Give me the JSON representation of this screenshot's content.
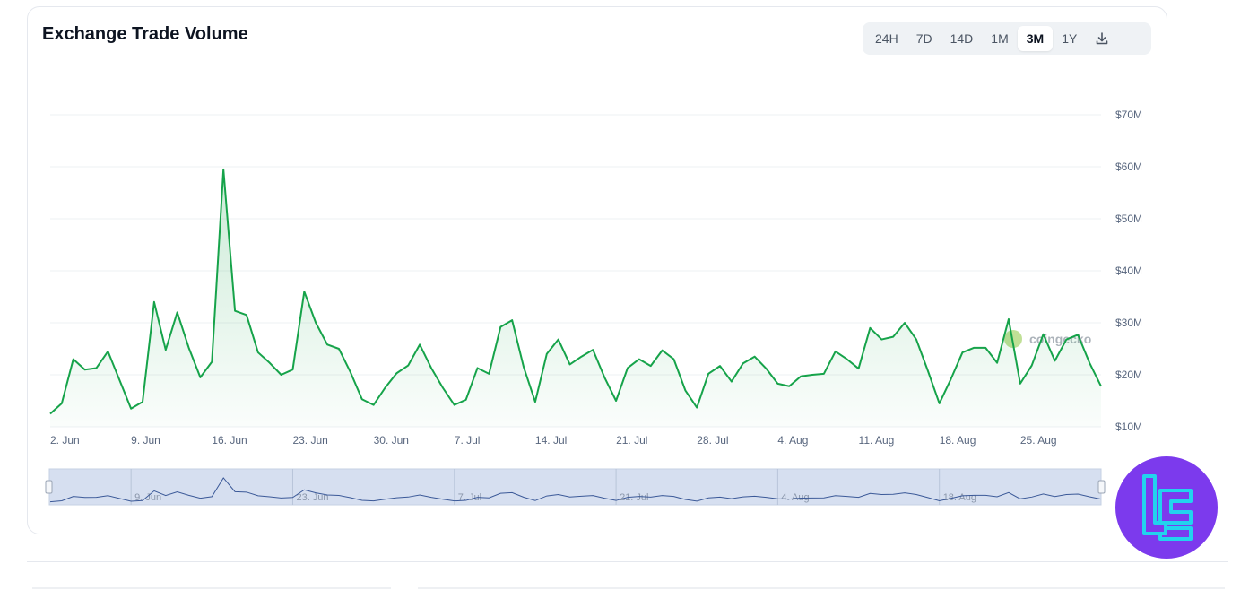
{
  "card": {
    "title": "Exchange Trade Volume",
    "range_buttons": [
      {
        "label": "24H",
        "active": false
      },
      {
        "label": "7D",
        "active": false
      },
      {
        "label": "14D",
        "active": false
      },
      {
        "label": "1M",
        "active": false
      },
      {
        "label": "3M",
        "active": true
      },
      {
        "label": "1Y",
        "active": false
      }
    ],
    "download_icon": "download-icon"
  },
  "watermark": {
    "text": "coingecko"
  },
  "colors": {
    "line": "#16a34a",
    "area_top": "#16a34a",
    "navigator_fill": "#d6dff0",
    "navigator_line": "#3b5998",
    "brand_purple": "#7c3aed",
    "brand_cyan": "#22d3ee"
  },
  "chart_data": {
    "type": "area",
    "title": "Exchange Trade Volume",
    "x_tick_labels": [
      "2. Jun",
      "9. Jun",
      "16. Jun",
      "23. Jun",
      "30. Jun",
      "7. Jul",
      "14. Jul",
      "21. Jul",
      "28. Jul",
      "4. Aug",
      "11. Aug",
      "18. Aug",
      "25. Aug"
    ],
    "y_tick_labels": [
      "$10M",
      "$20M",
      "$30M",
      "$40M",
      "$50M",
      "$60M",
      "$70M"
    ],
    "y_ticks": [
      10,
      20,
      30,
      40,
      50,
      60,
      70
    ],
    "ylim": [
      10,
      70
    ],
    "y_unit": "$M",
    "grid": true,
    "navigator_labels": [
      "9. Jun",
      "23. Jun",
      "7. Jul",
      "21. Jul",
      "4. Aug",
      "18. Aug"
    ],
    "series": [
      {
        "values": [
          12.5,
          14.5,
          23,
          21,
          21.3,
          24.5,
          19,
          13.5,
          14.8,
          34,
          24.8,
          32,
          25.2,
          19.5,
          22.5,
          59.5,
          32.3,
          31.5,
          24.3,
          22.3,
          20,
          21,
          36,
          30,
          25.8,
          25,
          20.5,
          15.3,
          14.2,
          17.5,
          20.3,
          21.8,
          25.8,
          21.3,
          17.5,
          14.2,
          15.2,
          21.3,
          20.2,
          29.2,
          30.5,
          21.5,
          14.8,
          24,
          26.8,
          22,
          23.5,
          24.8,
          19.5,
          15,
          21.3,
          23,
          21.7,
          24.7,
          23,
          17,
          13.7,
          20.2,
          21.7,
          18.7,
          22.2,
          23.5,
          21.2,
          18.3,
          17.8,
          19.7,
          20,
          20.2,
          24.5,
          23,
          21.2,
          29,
          26.8,
          27.3,
          30,
          26.8,
          20.8,
          14.5,
          19.2,
          24.3,
          25.2,
          25.2,
          22.3,
          30.7,
          18.3,
          21.8,
          27.8,
          22.7,
          26.8,
          27.7,
          22.3,
          17.8
        ]
      }
    ]
  }
}
